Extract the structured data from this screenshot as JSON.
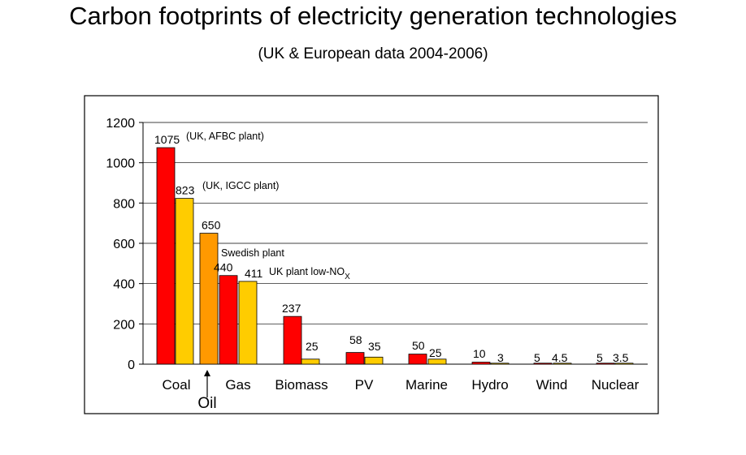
{
  "title": "Carbon footprints of electricity generation technologies",
  "subtitle": "(UK & European data 2004-2006)",
  "colors": {
    "red": "#ff0000",
    "yellow": "#ffcc00",
    "orange": "#ff9900",
    "grid": "#000000"
  },
  "chart_data": {
    "type": "bar",
    "title": "Carbon footprints of electricity generation technologies",
    "subtitle": "(UK & European data 2004-2006)",
    "xlabel": "",
    "ylabel": "",
    "ylim": [
      0,
      1200
    ],
    "yticks": [
      "0",
      "200",
      "400",
      "600",
      "800",
      "1000",
      "1200"
    ],
    "grid": true,
    "categories": [
      "Coal",
      "Oil",
      "Gas",
      "Biomass",
      "PV",
      "Marine",
      "Hydro",
      "Wind",
      "Nuclear"
    ],
    "bars": [
      {
        "category": "Coal",
        "value": 1075,
        "label": "1075",
        "color": "red"
      },
      {
        "category": "Coal",
        "value": 823,
        "label": "823",
        "color": "yellow"
      },
      {
        "category": "Oil",
        "value": 650,
        "label": "650",
        "color": "orange"
      },
      {
        "category": "Gas",
        "value": 440,
        "label": "440",
        "color": "red"
      },
      {
        "category": "Gas",
        "value": 411,
        "label": "411",
        "color": "yellow"
      },
      {
        "category": "Biomass",
        "value": 237,
        "label": "237",
        "color": "red"
      },
      {
        "category": "Biomass",
        "value": 25,
        "label": "25",
        "color": "yellow"
      },
      {
        "category": "PV",
        "value": 58,
        "label": "58",
        "color": "red"
      },
      {
        "category": "PV",
        "value": 35,
        "label": "35",
        "color": "yellow"
      },
      {
        "category": "Marine",
        "value": 50,
        "label": "50",
        "color": "red"
      },
      {
        "category": "Marine",
        "value": 25,
        "label": "25",
        "color": "yellow"
      },
      {
        "category": "Hydro",
        "value": 10,
        "label": "10",
        "color": "red"
      },
      {
        "category": "Hydro",
        "value": 3,
        "label": "3",
        "color": "yellow"
      },
      {
        "category": "Wind",
        "value": 5,
        "label": "5",
        "color": "red"
      },
      {
        "category": "Wind",
        "value": 4.5,
        "label": "4.5",
        "color": "yellow"
      },
      {
        "category": "Nuclear",
        "value": 5,
        "label": "5",
        "color": "red"
      },
      {
        "category": "Nuclear",
        "value": 3.5,
        "label": "3.5",
        "color": "yellow"
      }
    ],
    "annotations": {
      "coal_afbc": "(UK, AFBC plant)",
      "coal_igcc": "(UK, IGCC plant)",
      "gas_swedish": "Swedish plant",
      "gas_uk_low_nox": "UK plant low-NO",
      "gas_uk_low_nox_sub": "X"
    }
  }
}
